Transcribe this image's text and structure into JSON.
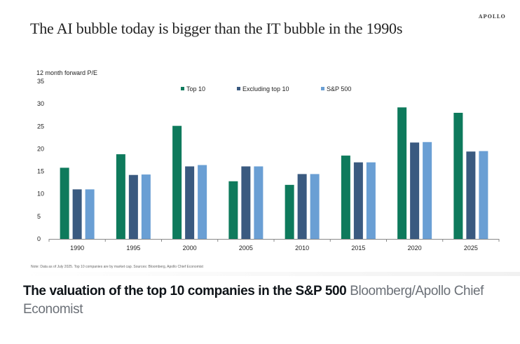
{
  "brand": "APOLLO",
  "caption": {
    "main": "The valuation of the top 10 companies in the S&P 500",
    "source": "Bloomberg/Apollo Chief Economist"
  },
  "chart_data": {
    "type": "bar",
    "title": "The AI bubble today is bigger than the IT bubble in the 1990s",
    "ylabel": "12 month forward P/E",
    "xlabel": "",
    "ylim": [
      0,
      35
    ],
    "yticks": [
      0,
      5,
      10,
      15,
      20,
      25,
      30,
      35
    ],
    "grid": false,
    "legend_position": "top-center",
    "categories": [
      "1990",
      "1995",
      "2000",
      "2005",
      "2010",
      "2015",
      "2020",
      "2025"
    ],
    "series": [
      {
        "name": "Top 10",
        "color": "#0e7a5c",
        "values": [
          15.8,
          18.8,
          25.1,
          12.8,
          12.0,
          18.5,
          29.2,
          28.0
        ]
      },
      {
        "name": "Excluding top 10",
        "color": "#3a5a80",
        "values": [
          11.0,
          14.2,
          16.1,
          16.1,
          14.4,
          17.0,
          21.4,
          19.4
        ]
      },
      {
        "name": "S&P 500",
        "color": "#6a9fd4",
        "values": [
          11.0,
          14.3,
          16.4,
          16.1,
          14.4,
          17.0,
          21.5,
          19.5
        ]
      }
    ],
    "note": "Note: Data as of July 2025. Top 10 companies are by market cap. Sources: Bloomberg, Apollo Chief Economist"
  }
}
